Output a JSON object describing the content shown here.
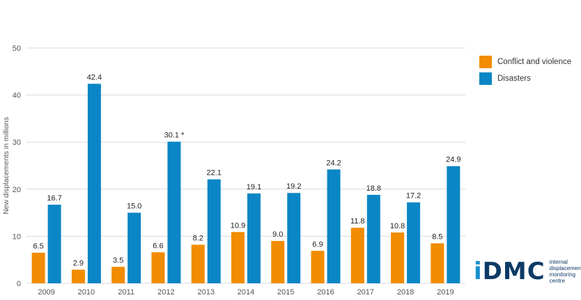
{
  "chart_data": {
    "type": "bar",
    "ylabel": "New displacements in millions",
    "ylim": [
      0,
      50
    ],
    "yticks": [
      0,
      10,
      20,
      30,
      40,
      50
    ],
    "categories": [
      "2009",
      "2010",
      "2011",
      "2012",
      "2013",
      "2014",
      "2015",
      "2016",
      "2017",
      "2018",
      "2019"
    ],
    "series": [
      {
        "name": "Conflict and violence",
        "color": "#f28c00",
        "values": [
          6.5,
          2.9,
          3.5,
          6.6,
          8.2,
          10.9,
          9.0,
          6.9,
          11.8,
          10.8,
          8.5
        ],
        "labels": [
          "6.5",
          "2.9",
          "3.5",
          "6.6",
          "8.2",
          "10.9",
          "9.0",
          "6.9",
          "11.8",
          "10.8",
          "8.5"
        ]
      },
      {
        "name": "Disasters",
        "color": "#0a86c6",
        "values": [
          16.7,
          42.4,
          15.0,
          30.1,
          22.1,
          19.1,
          19.2,
          24.2,
          18.8,
          17.2,
          24.9
        ],
        "labels": [
          "16.7",
          "42.4",
          "15.0",
          "30.1 *",
          "22.1",
          "19.1",
          "19.2",
          "24.2",
          "18.8",
          "17.2",
          "24.9"
        ]
      }
    ],
    "legend_position": "top-right",
    "grid": true
  },
  "logo": {
    "mark_prefix": "i",
    "mark_rest": "DMC",
    "text_line1": "internal",
    "text_line2": "displacement",
    "text_line3": "monitoring",
    "text_line4": "centre"
  }
}
